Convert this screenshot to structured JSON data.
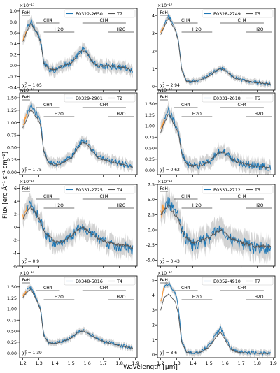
{
  "figure": {
    "ylabel": "Flux [erg Å⁻¹ s⁻¹ cm⁻²]",
    "xlabel": "Wavelength [µm]",
    "x_ticks": [
      "1.2",
      "1.3",
      "1.4",
      "1.5",
      "1.6",
      "1.7",
      "1.8",
      "1.9"
    ],
    "colors": {
      "object": "#1f77b4",
      "template": "#555555",
      "uncertainty": "#c8c8c8",
      "masked": "#ff9933",
      "feature_line": "#444444"
    }
  },
  "chart_data": [
    {
      "type": "line",
      "object": "E0322-2650",
      "template": "T7",
      "offset": "×10⁻¹⁷",
      "chi2": "1.05",
      "xlim": [
        1.18,
        1.91
      ],
      "ylim": [
        -0.45,
        1.05
      ],
      "yticks": [
        -0.4,
        -0.2,
        0.0,
        0.2,
        0.4,
        0.6,
        0.8,
        1.0
      ],
      "ytick_labels": [
        "-0.4",
        "-0.2",
        "0.0",
        "0.2",
        "0.4",
        "0.6",
        "0.8",
        "1.0"
      ],
      "spectrum_profile": [
        [
          1.2,
          0.45
        ],
        [
          1.22,
          0.62
        ],
        [
          1.25,
          0.82
        ],
        [
          1.27,
          0.72
        ],
        [
          1.29,
          0.62
        ],
        [
          1.31,
          0.45
        ],
        [
          1.33,
          0.05
        ],
        [
          1.36,
          -0.05
        ],
        [
          1.4,
          -0.08
        ],
        [
          1.45,
          0.0
        ],
        [
          1.5,
          0.05
        ],
        [
          1.54,
          0.18
        ],
        [
          1.57,
          0.3
        ],
        [
          1.6,
          0.24
        ],
        [
          1.63,
          0.08
        ],
        [
          1.67,
          -0.02
        ],
        [
          1.72,
          0.0
        ],
        [
          1.78,
          -0.02
        ],
        [
          1.84,
          -0.04
        ],
        [
          1.88,
          -0.1
        ]
      ],
      "noise": 0.06,
      "template_scale": 0.95,
      "features": [
        {
          "label": "FeH",
          "x1": 1.195,
          "x2": 1.245,
          "level": 0
        },
        {
          "label": "CH4",
          "x1": 1.28,
          "x2": 1.43,
          "level": 1
        },
        {
          "label": "CH4",
          "x1": 1.57,
          "x2": 1.84,
          "level": 1
        },
        {
          "label": "H2O",
          "x1": 1.33,
          "x2": 1.52,
          "level": 2
        },
        {
          "label": "H2O",
          "x1": 1.73,
          "x2": 1.89,
          "level": 2
        }
      ]
    },
    {
      "type": "line",
      "object": "E0328-2749",
      "template": "T5",
      "offset": "×10⁻¹⁷",
      "chi2": "2.94",
      "xlim": [
        1.18,
        1.91
      ],
      "ylim": [
        -0.2,
        4.4
      ],
      "yticks": [
        0,
        1,
        2,
        3,
        4
      ],
      "ytick_labels": [
        "0",
        "1",
        "2",
        "3",
        "4"
      ],
      "spectrum_profile": [
        [
          1.2,
          3.0
        ],
        [
          1.22,
          3.4
        ],
        [
          1.25,
          4.0
        ],
        [
          1.27,
          3.6
        ],
        [
          1.29,
          3.3
        ],
        [
          1.31,
          2.6
        ],
        [
          1.33,
          1.0
        ],
        [
          1.36,
          0.3
        ],
        [
          1.4,
          0.3
        ],
        [
          1.45,
          0.4
        ],
        [
          1.5,
          0.6
        ],
        [
          1.54,
          0.9
        ],
        [
          1.57,
          1.05
        ],
        [
          1.6,
          0.95
        ],
        [
          1.63,
          0.7
        ],
        [
          1.67,
          0.45
        ],
        [
          1.72,
          0.35
        ],
        [
          1.78,
          0.25
        ],
        [
          1.84,
          0.18
        ],
        [
          1.88,
          0.15
        ]
      ],
      "noise": 0.1,
      "template_scale": 0.97,
      "features": [
        {
          "label": "FeH",
          "x1": 1.195,
          "x2": 1.245,
          "level": 0
        },
        {
          "label": "CH4",
          "x1": 1.28,
          "x2": 1.43,
          "level": 1
        },
        {
          "label": "CH4",
          "x1": 1.57,
          "x2": 1.84,
          "level": 1
        },
        {
          "label": "H2O",
          "x1": 1.33,
          "x2": 1.52,
          "level": 2
        },
        {
          "label": "H2O",
          "x1": 1.73,
          "x2": 1.89,
          "level": 2
        }
      ]
    },
    {
      "type": "line",
      "object": "E0329-2901",
      "template": "T2",
      "offset": "×10⁻¹⁷",
      "chi2": "1.75",
      "xlim": [
        1.18,
        1.91
      ],
      "ylim": [
        -0.05,
        1.6
      ],
      "yticks": [
        0.0,
        0.25,
        0.5,
        0.75,
        1.0,
        1.25,
        1.5
      ],
      "ytick_labels": [
        "0.00",
        "0.25",
        "0.50",
        "0.75",
        "1.00",
        "1.25",
        "1.50"
      ],
      "spectrum_profile": [
        [
          1.2,
          0.95
        ],
        [
          1.22,
          1.1
        ],
        [
          1.25,
          1.35
        ],
        [
          1.27,
          1.25
        ],
        [
          1.29,
          1.15
        ],
        [
          1.31,
          1.0
        ],
        [
          1.33,
          0.45
        ],
        [
          1.36,
          0.2
        ],
        [
          1.4,
          0.15
        ],
        [
          1.45,
          0.2
        ],
        [
          1.5,
          0.3
        ],
        [
          1.54,
          0.5
        ],
        [
          1.57,
          0.65
        ],
        [
          1.6,
          0.6
        ],
        [
          1.63,
          0.45
        ],
        [
          1.67,
          0.3
        ],
        [
          1.72,
          0.25
        ],
        [
          1.78,
          0.2
        ],
        [
          1.84,
          0.15
        ],
        [
          1.88,
          0.1
        ]
      ],
      "noise": 0.06,
      "template_scale": 0.94,
      "features": [
        {
          "label": "FeH",
          "x1": 1.195,
          "x2": 1.245,
          "level": 0
        },
        {
          "label": "CH4",
          "x1": 1.28,
          "x2": 1.43,
          "level": 1
        },
        {
          "label": "CH4",
          "x1": 1.57,
          "x2": 1.84,
          "level": 1
        },
        {
          "label": "H2O",
          "x1": 1.33,
          "x2": 1.52,
          "level": 2
        },
        {
          "label": "H2O",
          "x1": 1.73,
          "x2": 1.89,
          "level": 2
        }
      ]
    },
    {
      "type": "line",
      "object": "E0331-2618",
      "template": "T5",
      "offset": "×10⁻¹⁷",
      "chi2": "0.62",
      "xlim": [
        1.18,
        1.91
      ],
      "ylim": [
        -0.1,
        1.75
      ],
      "yticks": [
        0.0,
        0.25,
        0.5,
        0.75,
        1.0,
        1.25,
        1.5
      ],
      "ytick_labels": [
        "0.00",
        "0.25",
        "0.50",
        "0.75",
        "1.00",
        "1.25",
        "1.50"
      ],
      "spectrum_profile": [
        [
          1.2,
          0.9
        ],
        [
          1.22,
          1.1
        ],
        [
          1.25,
          1.35
        ],
        [
          1.27,
          1.2
        ],
        [
          1.29,
          1.05
        ],
        [
          1.31,
          0.9
        ],
        [
          1.33,
          0.4
        ],
        [
          1.36,
          0.15
        ],
        [
          1.4,
          0.1
        ],
        [
          1.45,
          0.12
        ],
        [
          1.5,
          0.2
        ],
        [
          1.54,
          0.35
        ],
        [
          1.57,
          0.45
        ],
        [
          1.6,
          0.4
        ],
        [
          1.63,
          0.3
        ],
        [
          1.67,
          0.2
        ],
        [
          1.72,
          0.15
        ],
        [
          1.78,
          0.1
        ],
        [
          1.84,
          0.08
        ],
        [
          1.88,
          0.05
        ]
      ],
      "noise": 0.09,
      "template_scale": 0.95,
      "features": [
        {
          "label": "FeH",
          "x1": 1.195,
          "x2": 1.245,
          "level": 0
        },
        {
          "label": "CH4",
          "x1": 1.28,
          "x2": 1.43,
          "level": 1
        },
        {
          "label": "CH4",
          "x1": 1.57,
          "x2": 1.84,
          "level": 1
        },
        {
          "label": "H2O",
          "x1": 1.33,
          "x2": 1.52,
          "level": 2
        },
        {
          "label": "H2O",
          "x1": 1.73,
          "x2": 1.89,
          "level": 2
        }
      ]
    },
    {
      "type": "line",
      "object": "E0331-2725",
      "template": "T4",
      "offset": "×10⁻¹⁸",
      "chi2": "0.9",
      "xlim": [
        1.18,
        1.91
      ],
      "ylim": [
        -6.0,
        6.6
      ],
      "yticks": [
        -6,
        -4,
        -2,
        0,
        2,
        4,
        6
      ],
      "ytick_labels": [
        "-6",
        "-4",
        "-2",
        "0",
        "2",
        "4",
        "6"
      ],
      "spectrum_profile": [
        [
          1.2,
          1.5
        ],
        [
          1.22,
          2.5
        ],
        [
          1.25,
          3.5
        ],
        [
          1.27,
          2.8
        ],
        [
          1.29,
          2.0
        ],
        [
          1.31,
          1.0
        ],
        [
          1.33,
          -0.5
        ],
        [
          1.36,
          -1.5
        ],
        [
          1.4,
          -2.5
        ],
        [
          1.45,
          -2.5
        ],
        [
          1.5,
          -1.5
        ],
        [
          1.54,
          -0.5
        ],
        [
          1.57,
          0.0
        ],
        [
          1.6,
          -0.5
        ],
        [
          1.63,
          -1.0
        ],
        [
          1.67,
          -2.0
        ],
        [
          1.72,
          -2.5
        ],
        [
          1.78,
          -3.0
        ],
        [
          1.84,
          -3.0
        ],
        [
          1.88,
          -3.5
        ]
      ],
      "noise": 0.8,
      "template_scale": 0.9,
      "features": [
        {
          "label": "FeH",
          "x1": 1.195,
          "x2": 1.245,
          "level": 0
        },
        {
          "label": "CH4",
          "x1": 1.28,
          "x2": 1.43,
          "level": 1
        },
        {
          "label": "CH4",
          "x1": 1.57,
          "x2": 1.84,
          "level": 1
        },
        {
          "label": "H2O",
          "x1": 1.33,
          "x2": 1.52,
          "level": 2
        },
        {
          "label": "H2O",
          "x1": 1.73,
          "x2": 1.89,
          "level": 2
        }
      ]
    },
    {
      "type": "line",
      "object": "E0331-2712",
      "template": "T5",
      "offset": "×10⁻¹⁸",
      "chi2": "0.43",
      "xlim": [
        1.18,
        1.91
      ],
      "ylim": [
        -6.0,
        7.5
      ],
      "yticks": [
        -5.0,
        -2.5,
        0.0,
        2.5,
        5.0,
        7.5
      ],
      "ytick_labels": [
        "-5.0",
        "-2.5",
        "0.0",
        "2.5",
        "5.0",
        "7.5"
      ],
      "spectrum_profile": [
        [
          1.2,
          2.5
        ],
        [
          1.22,
          3.5
        ],
        [
          1.25,
          4.5
        ],
        [
          1.27,
          3.5
        ],
        [
          1.29,
          2.8
        ],
        [
          1.31,
          2.0
        ],
        [
          1.33,
          0.0
        ],
        [
          1.36,
          -1.5
        ],
        [
          1.4,
          -2.5
        ],
        [
          1.45,
          -2.0
        ],
        [
          1.5,
          -1.5
        ],
        [
          1.54,
          -0.5
        ],
        [
          1.57,
          0.0
        ],
        [
          1.6,
          -0.5
        ],
        [
          1.63,
          -1.5
        ],
        [
          1.67,
          -2.0
        ],
        [
          1.72,
          -2.5
        ],
        [
          1.78,
          -3.0
        ],
        [
          1.84,
          -3.0
        ],
        [
          1.88,
          -3.0
        ]
      ],
      "noise": 1.1,
      "template_scale": 0.9,
      "features": [
        {
          "label": "FeH",
          "x1": 1.195,
          "x2": 1.245,
          "level": 0
        },
        {
          "label": "CH4",
          "x1": 1.28,
          "x2": 1.43,
          "level": 1
        },
        {
          "label": "CH4",
          "x1": 1.57,
          "x2": 1.84,
          "level": 1
        },
        {
          "label": "H2O",
          "x1": 1.33,
          "x2": 1.52,
          "level": 2
        },
        {
          "label": "H2O",
          "x1": 1.73,
          "x2": 1.89,
          "level": 2
        }
      ]
    },
    {
      "type": "line",
      "object": "E0348-5016",
      "template": "T4",
      "offset": "×10⁻¹⁷",
      "chi2": "1.39",
      "xlim": [
        1.18,
        1.91
      ],
      "ylim": [
        -0.1,
        1.75
      ],
      "yticks": [
        0.0,
        0.25,
        0.5,
        0.75,
        1.0,
        1.25,
        1.5
      ],
      "ytick_labels": [
        "0.00",
        "0.25",
        "0.50",
        "0.75",
        "1.00",
        "1.25",
        "1.50"
      ],
      "spectrum_profile": [
        [
          1.2,
          1.3
        ],
        [
          1.22,
          1.4
        ],
        [
          1.25,
          1.5
        ],
        [
          1.27,
          1.35
        ],
        [
          1.29,
          1.2
        ],
        [
          1.31,
          1.0
        ],
        [
          1.33,
          0.4
        ],
        [
          1.36,
          0.25
        ],
        [
          1.4,
          0.22
        ],
        [
          1.45,
          0.28
        ],
        [
          1.5,
          0.35
        ],
        [
          1.54,
          0.48
        ],
        [
          1.57,
          0.52
        ],
        [
          1.6,
          0.48
        ],
        [
          1.63,
          0.4
        ],
        [
          1.67,
          0.32
        ],
        [
          1.72,
          0.25
        ],
        [
          1.78,
          0.2
        ],
        [
          1.84,
          0.15
        ],
        [
          1.88,
          0.12
        ]
      ],
      "noise": 0.04,
      "template_scale": 0.97,
      "features": [
        {
          "label": "FeH",
          "x1": 1.195,
          "x2": 1.245,
          "level": 0
        },
        {
          "label": "CH4",
          "x1": 1.28,
          "x2": 1.43,
          "level": 1
        },
        {
          "label": "CH4",
          "x1": 1.57,
          "x2": 1.84,
          "level": 1
        },
        {
          "label": "H2O",
          "x1": 1.33,
          "x2": 1.52,
          "level": 2
        },
        {
          "label": "H2O",
          "x1": 1.73,
          "x2": 1.89,
          "level": 2
        }
      ]
    },
    {
      "type": "line",
      "object": "E0352-4910",
      "template": "T7",
      "offset": "×10⁻¹⁷",
      "chi2": "8.6",
      "xlim": [
        1.18,
        1.91
      ],
      "ylim": [
        -0.2,
        5.3
      ],
      "yticks": [
        0,
        1,
        2,
        3,
        4,
        5
      ],
      "ytick_labels": [
        "0",
        "1",
        "2",
        "3",
        "4",
        "5"
      ],
      "spectrum_profile": [
        [
          1.2,
          3.5
        ],
        [
          1.22,
          4.5
        ],
        [
          1.25,
          4.8
        ],
        [
          1.27,
          4.5
        ],
        [
          1.29,
          4.2
        ],
        [
          1.31,
          3.2
        ],
        [
          1.33,
          1.0
        ],
        [
          1.36,
          0.2
        ],
        [
          1.4,
          0.1
        ],
        [
          1.45,
          0.2
        ],
        [
          1.5,
          0.6
        ],
        [
          1.54,
          1.3
        ],
        [
          1.57,
          1.8
        ],
        [
          1.6,
          1.2
        ],
        [
          1.63,
          0.5
        ],
        [
          1.67,
          0.2
        ],
        [
          1.72,
          0.15
        ],
        [
          1.78,
          0.12
        ],
        [
          1.84,
          0.1
        ],
        [
          1.88,
          0.1
        ]
      ],
      "noise": 0.12,
      "template_scale": 0.85,
      "features": [
        {
          "label": "FeH",
          "x1": 1.195,
          "x2": 1.245,
          "level": 0
        },
        {
          "label": "CH4",
          "x1": 1.28,
          "x2": 1.43,
          "level": 1
        },
        {
          "label": "CH4",
          "x1": 1.57,
          "x2": 1.84,
          "level": 1
        },
        {
          "label": "H2O",
          "x1": 1.33,
          "x2": 1.52,
          "level": 2
        },
        {
          "label": "H2O",
          "x1": 1.73,
          "x2": 1.89,
          "level": 2
        }
      ]
    }
  ]
}
